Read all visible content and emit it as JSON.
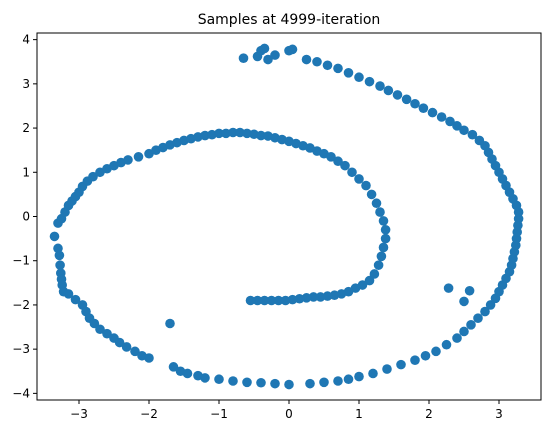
{
  "chart_data": {
    "type": "scatter",
    "title": "Samples at 4999-iteration",
    "xlabel": "",
    "ylabel": "",
    "xlim": [
      -3.6,
      3.6
    ],
    "ylim": [
      -4.15,
      4.15
    ],
    "xticks": [
      -3,
      -2,
      -1,
      0,
      1,
      2,
      3
    ],
    "xtick_labels": [
      "−3",
      "−2",
      "−1",
      "0",
      "1",
      "2",
      "3"
    ],
    "yticks": [
      -4,
      -3,
      -2,
      -1,
      0,
      1,
      2,
      3,
      4
    ],
    "ytick_labels": [
      "−4",
      "−3",
      "−2",
      "−1",
      "0",
      "1",
      "2",
      "3",
      "4"
    ],
    "grid": false,
    "legend": false,
    "marker_color": "#1f77b4",
    "series": [
      {
        "points": [
          [
            -3.35,
            -0.45
          ],
          [
            -3.3,
            -0.72
          ],
          [
            -3.28,
            -0.88
          ],
          [
            -3.27,
            -1.1
          ],
          [
            -3.26,
            -1.28
          ],
          [
            -3.25,
            -1.42
          ],
          [
            -3.24,
            -1.55
          ],
          [
            -3.22,
            -1.7
          ],
          [
            -3.3,
            -0.15
          ],
          [
            -3.25,
            -0.05
          ],
          [
            -3.2,
            0.1
          ],
          [
            -3.15,
            0.25
          ],
          [
            -3.1,
            0.35
          ],
          [
            -3.05,
            0.45
          ],
          [
            -3.0,
            0.55
          ],
          [
            -2.95,
            0.68
          ],
          [
            -2.88,
            0.8
          ],
          [
            -2.8,
            0.9
          ],
          [
            -2.7,
            1.0
          ],
          [
            -2.6,
            1.08
          ],
          [
            -2.5,
            1.15
          ],
          [
            -2.4,
            1.22
          ],
          [
            -2.3,
            1.28
          ],
          [
            -2.15,
            1.35
          ],
          [
            -2.0,
            1.42
          ],
          [
            -1.9,
            1.5
          ],
          [
            -1.8,
            1.56
          ],
          [
            -1.7,
            1.62
          ],
          [
            -1.6,
            1.67
          ],
          [
            -1.5,
            1.72
          ],
          [
            -1.4,
            1.76
          ],
          [
            -1.3,
            1.8
          ],
          [
            -1.2,
            1.83
          ],
          [
            -1.1,
            1.85
          ],
          [
            -1.0,
            1.88
          ],
          [
            -0.9,
            1.88
          ],
          [
            -0.8,
            1.9
          ],
          [
            -0.7,
            1.9
          ],
          [
            -0.6,
            1.88
          ],
          [
            -0.5,
            1.86
          ],
          [
            -0.4,
            1.83
          ],
          [
            -0.3,
            1.82
          ],
          [
            -0.2,
            1.78
          ],
          [
            -0.1,
            1.74
          ],
          [
            0.0,
            1.7
          ],
          [
            0.1,
            1.65
          ],
          [
            0.2,
            1.6
          ],
          [
            0.3,
            1.55
          ],
          [
            0.4,
            1.48
          ],
          [
            0.5,
            1.42
          ],
          [
            0.6,
            1.35
          ],
          [
            0.7,
            1.25
          ],
          [
            0.8,
            1.15
          ],
          [
            0.9,
            1.0
          ],
          [
            1.0,
            0.85
          ],
          [
            1.1,
            0.7
          ],
          [
            1.18,
            0.5
          ],
          [
            1.25,
            0.3
          ],
          [
            1.3,
            0.1
          ],
          [
            1.35,
            -0.1
          ],
          [
            1.38,
            -0.3
          ],
          [
            1.38,
            -0.5
          ],
          [
            1.35,
            -0.7
          ],
          [
            1.32,
            -0.9
          ],
          [
            1.28,
            -1.1
          ],
          [
            1.22,
            -1.3
          ],
          [
            1.15,
            -1.45
          ],
          [
            1.05,
            -1.55
          ],
          [
            0.95,
            -1.62
          ],
          [
            0.85,
            -1.7
          ],
          [
            0.75,
            -1.75
          ],
          [
            0.65,
            -1.78
          ],
          [
            0.55,
            -1.8
          ],
          [
            0.45,
            -1.82
          ],
          [
            0.35,
            -1.82
          ],
          [
            0.25,
            -1.84
          ],
          [
            0.15,
            -1.86
          ],
          [
            0.05,
            -1.88
          ],
          [
            -0.05,
            -1.9
          ],
          [
            -0.15,
            -1.9
          ],
          [
            -0.25,
            -1.9
          ],
          [
            -0.35,
            -1.9
          ],
          [
            -0.45,
            -1.9
          ],
          [
            -0.55,
            -1.9
          ],
          [
            -3.15,
            -1.75
          ],
          [
            -3.05,
            -1.88
          ],
          [
            -2.95,
            -2.0
          ],
          [
            -2.9,
            -2.15
          ],
          [
            -2.85,
            -2.3
          ],
          [
            -2.78,
            -2.42
          ],
          [
            -2.7,
            -2.55
          ],
          [
            -2.6,
            -2.65
          ],
          [
            -2.5,
            -2.75
          ],
          [
            -2.42,
            -2.85
          ],
          [
            -2.32,
            -2.95
          ],
          [
            -2.2,
            -3.05
          ],
          [
            -2.1,
            -3.15
          ],
          [
            -2.0,
            -3.2
          ],
          [
            -1.7,
            -2.42
          ],
          [
            -1.65,
            -3.4
          ],
          [
            -1.55,
            -3.5
          ],
          [
            -1.45,
            -3.55
          ],
          [
            -1.3,
            -3.6
          ],
          [
            -1.2,
            -3.65
          ],
          [
            -1.0,
            -3.68
          ],
          [
            -0.8,
            -3.72
          ],
          [
            -0.6,
            -3.75
          ],
          [
            -0.4,
            -3.76
          ],
          [
            -0.2,
            -3.78
          ],
          [
            0.0,
            -3.8
          ],
          [
            0.3,
            -3.78
          ],
          [
            0.5,
            -3.75
          ],
          [
            0.7,
            -3.72
          ],
          [
            0.85,
            -3.68
          ],
          [
            1.0,
            -3.62
          ],
          [
            1.2,
            -3.55
          ],
          [
            1.4,
            -3.45
          ],
          [
            1.6,
            -3.35
          ],
          [
            1.8,
            -3.25
          ],
          [
            1.95,
            -3.15
          ],
          [
            2.1,
            -3.05
          ],
          [
            2.25,
            -2.9
          ],
          [
            2.4,
            -2.75
          ],
          [
            2.5,
            -2.6
          ],
          [
            2.6,
            -2.45
          ],
          [
            2.7,
            -2.3
          ],
          [
            2.8,
            -2.15
          ],
          [
            2.88,
            -2.0
          ],
          [
            2.95,
            -1.85
          ],
          [
            3.0,
            -1.7
          ],
          [
            3.05,
            -1.55
          ],
          [
            3.1,
            -1.4
          ],
          [
            3.15,
            -1.25
          ],
          [
            3.18,
            -1.1
          ],
          [
            3.2,
            -0.95
          ],
          [
            3.22,
            -0.8
          ],
          [
            3.24,
            -0.65
          ],
          [
            3.25,
            -0.5
          ],
          [
            3.26,
            -0.35
          ],
          [
            3.27,
            -0.2
          ],
          [
            3.28,
            -0.05
          ],
          [
            3.28,
            0.1
          ],
          [
            3.25,
            0.25
          ],
          [
            3.2,
            0.4
          ],
          [
            3.15,
            0.55
          ],
          [
            3.1,
            0.7
          ],
          [
            3.05,
            0.85
          ],
          [
            3.0,
            1.0
          ],
          [
            2.95,
            1.15
          ],
          [
            2.9,
            1.3
          ],
          [
            2.85,
            1.45
          ],
          [
            2.8,
            1.6
          ],
          [
            2.72,
            1.72
          ],
          [
            2.62,
            1.85
          ],
          [
            2.5,
            1.95
          ],
          [
            2.4,
            2.05
          ],
          [
            2.3,
            2.15
          ],
          [
            2.18,
            2.25
          ],
          [
            2.05,
            2.35
          ],
          [
            1.92,
            2.45
          ],
          [
            1.8,
            2.55
          ],
          [
            1.68,
            2.65
          ],
          [
            1.55,
            2.75
          ],
          [
            1.42,
            2.85
          ],
          [
            1.3,
            2.95
          ],
          [
            1.15,
            3.05
          ],
          [
            1.0,
            3.15
          ],
          [
            0.85,
            3.25
          ],
          [
            0.7,
            3.35
          ],
          [
            0.55,
            3.42
          ],
          [
            0.4,
            3.5
          ],
          [
            0.25,
            3.55
          ],
          [
            -0.65,
            3.58
          ],
          [
            -0.45,
            3.62
          ],
          [
            -0.3,
            3.55
          ],
          [
            -0.2,
            3.65
          ],
          [
            0.0,
            3.75
          ],
          [
            -0.4,
            3.75
          ],
          [
            -0.35,
            3.8
          ],
          [
            0.05,
            3.78
          ],
          [
            2.28,
            -1.62
          ],
          [
            2.58,
            -1.68
          ],
          [
            2.5,
            -1.92
          ]
        ]
      }
    ]
  }
}
